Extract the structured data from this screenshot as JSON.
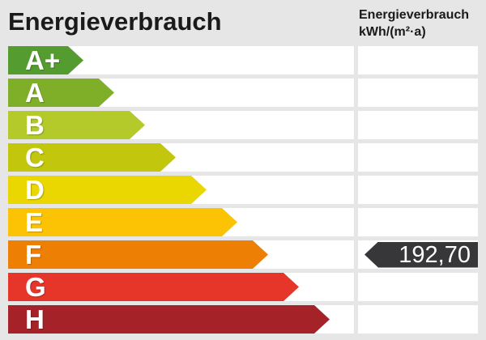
{
  "header": {
    "title": "Energieverbrauch",
    "unit_title": "Energieverbrauch",
    "unit": "kWh/(m²·a)"
  },
  "scale": {
    "rows": [
      {
        "label": "A+",
        "color": "#549c30",
        "arrow_width": 93
      },
      {
        "label": "A",
        "color": "#7fae28",
        "arrow_width": 131
      },
      {
        "label": "B",
        "color": "#b4ca2b",
        "arrow_width": 169
      },
      {
        "label": "C",
        "color": "#c2c70e",
        "arrow_width": 207
      },
      {
        "label": "D",
        "color": "#ead600",
        "arrow_width": 245
      },
      {
        "label": "E",
        "color": "#fbc303",
        "arrow_width": 283
      },
      {
        "label": "F",
        "color": "#ed8004",
        "arrow_width": 321
      },
      {
        "label": "G",
        "color": "#e63529",
        "arrow_width": 359
      },
      {
        "label": "H",
        "color": "#a52328",
        "arrow_width": 397
      }
    ]
  },
  "value_badge": {
    "value_label": "192,70",
    "value_class": "F",
    "color": "#37373a",
    "text_color": "#ffffff"
  },
  "chart_data": {
    "type": "bar",
    "title": "Energieverbrauch",
    "ylabel": "Energieverbrauch kWh/(m²·a)",
    "categories": [
      "A+",
      "A",
      "B",
      "C",
      "D",
      "E",
      "F",
      "G",
      "H"
    ],
    "values": [
      93,
      131,
      169,
      207,
      245,
      283,
      321,
      359,
      397
    ],
    "bar_colors": [
      "#549c30",
      "#7fae28",
      "#b4ca2b",
      "#c2c70e",
      "#ead600",
      "#fbc303",
      "#ed8004",
      "#e63529",
      "#a52328"
    ],
    "annotation": {
      "value": 192.7,
      "label": "192,70",
      "class": "F"
    },
    "orientation": "horizontal",
    "grid": false,
    "legend_position": "none"
  }
}
